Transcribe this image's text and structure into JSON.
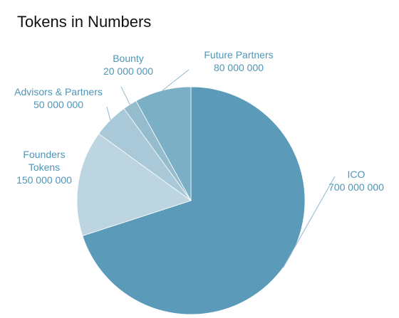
{
  "chart_data": {
    "type": "pie",
    "title": "Tokens in Numbers",
    "categories": [
      "ICO",
      "Founders Tokens",
      "Advisors & Partners",
      "Bounty",
      "Future Partners"
    ],
    "values": [
      700000000,
      150000000,
      50000000,
      20000000,
      80000000
    ],
    "value_labels": [
      "700 000 000",
      "150 000 000",
      "50 000 000",
      "20 000 000",
      "80 000 000"
    ],
    "colors": [
      "#5b9ab8",
      "#bcd5e1",
      "#a9c9d8",
      "#95bccd",
      "#7aafc6"
    ]
  }
}
